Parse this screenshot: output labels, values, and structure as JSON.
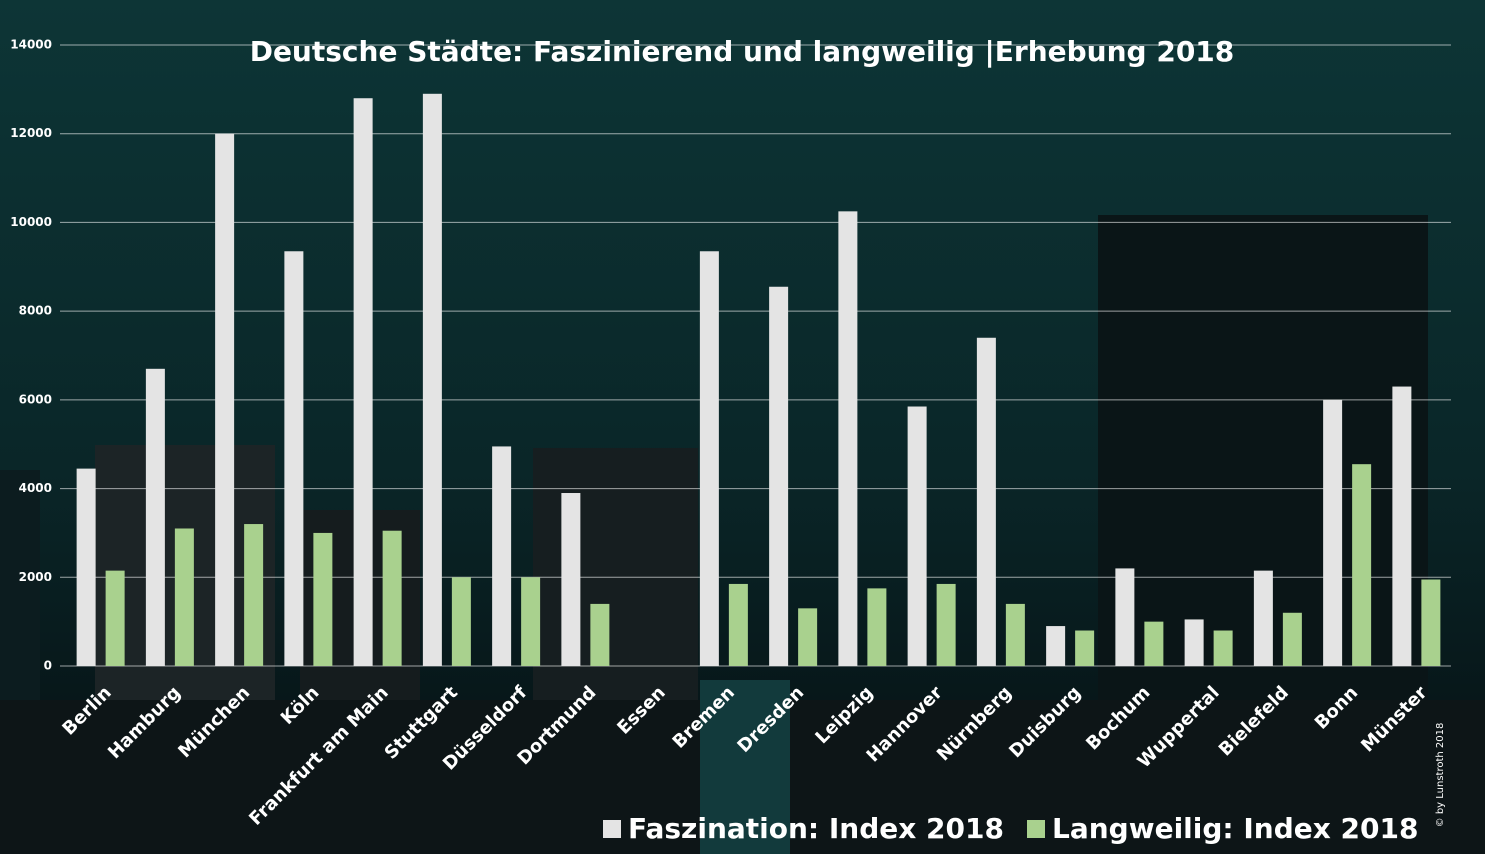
{
  "chart_data": {
    "type": "bar",
    "title": "Deutsche Städte: Faszinierend und langweilig |Erhebung 2018",
    "categories": [
      "Berlin",
      "Hamburg",
      "München",
      "Köln",
      "Frankfurt am Main",
      "Stuttgart",
      "Düsseldorf",
      "Dortmund",
      "Essen",
      "Bremen",
      "Dresden",
      "Leipzig",
      "Hannover",
      "Nürnberg",
      "Duisburg",
      "Bochum",
      "Wuppertal",
      "Bielefeld",
      "Bonn",
      "Münster"
    ],
    "series": [
      {
        "name": "Faszination: Index 2018",
        "color": "#e4e4e4",
        "values": [
          4450,
          6700,
          12000,
          9350,
          12800,
          12900,
          4950,
          3900,
          null,
          9350,
          8550,
          10250,
          5850,
          7400,
          900,
          2200,
          1050,
          2150,
          6000,
          6300
        ]
      },
      {
        "name": "Langweilig: Index 2018",
        "color": "#a9d18e",
        "values": [
          2150,
          3100,
          3200,
          3000,
          3050,
          2000,
          2000,
          1400,
          null,
          1850,
          1300,
          1750,
          1850,
          1400,
          800,
          1000,
          800,
          1200,
          4550,
          1950
        ]
      }
    ],
    "ylim": [
      0,
      14000
    ],
    "yticks": [
      0,
      2000,
      4000,
      6000,
      8000,
      10000,
      12000,
      14000
    ],
    "grid": true,
    "watermark": "© by Lunstroth 2018"
  }
}
